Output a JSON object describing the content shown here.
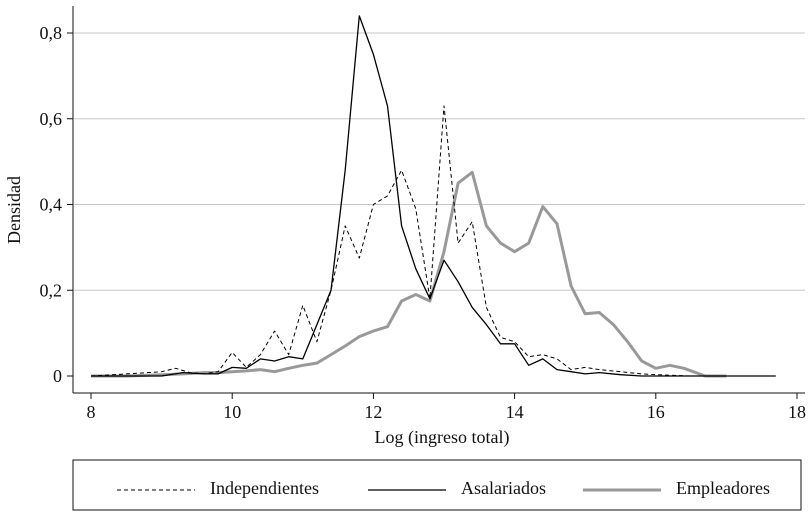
{
  "chart_data": {
    "type": "line",
    "title": "",
    "xlabel": "Log (ingreso total)",
    "ylabel": "Densidad",
    "xlim": [
      8,
      18
    ],
    "ylim": [
      0,
      0.85
    ],
    "x_ticks": [
      8,
      10,
      12,
      14,
      16,
      18
    ],
    "x_tick_labels": [
      "8",
      "10",
      "12",
      "14",
      "16",
      "18"
    ],
    "y_ticks": [
      0,
      0.2,
      0.4,
      0.6,
      0.8
    ],
    "y_tick_labels": [
      "0",
      "0,2",
      "0,4",
      "0,6",
      "0,8"
    ],
    "grid": "horizontal",
    "legend_position": "bottom",
    "series": [
      {
        "name": "Independientes",
        "color": "#000000",
        "style": "dashed",
        "x": [
          8.0,
          8.5,
          8.8,
          9.0,
          9.2,
          9.4,
          9.6,
          9.8,
          10.0,
          10.2,
          10.4,
          10.6,
          10.8,
          11.0,
          11.2,
          11.4,
          11.6,
          11.8,
          12.0,
          12.2,
          12.4,
          12.6,
          12.8,
          13.0,
          13.2,
          13.4,
          13.6,
          13.8,
          14.0,
          14.2,
          14.4,
          14.6,
          14.8,
          15.0,
          15.2,
          15.5,
          15.8,
          16.0,
          16.5,
          17.0
        ],
        "y": [
          0.0,
          0.005,
          0.008,
          0.01,
          0.018,
          0.008,
          0.005,
          0.01,
          0.055,
          0.02,
          0.05,
          0.105,
          0.05,
          0.165,
          0.08,
          0.2,
          0.35,
          0.275,
          0.4,
          0.42,
          0.48,
          0.39,
          0.18,
          0.63,
          0.31,
          0.36,
          0.16,
          0.09,
          0.08,
          0.045,
          0.05,
          0.04,
          0.015,
          0.02,
          0.015,
          0.01,
          0.005,
          0.003,
          0.0,
          0.0
        ]
      },
      {
        "name": "Asalariados",
        "color": "#000000",
        "style": "solid",
        "x": [
          8.0,
          8.5,
          9.0,
          9.3,
          9.6,
          9.8,
          10.0,
          10.2,
          10.4,
          10.6,
          10.8,
          11.0,
          11.2,
          11.4,
          11.6,
          11.8,
          12.0,
          12.2,
          12.4,
          12.6,
          12.8,
          13.0,
          13.2,
          13.4,
          13.6,
          13.8,
          14.0,
          14.2,
          14.4,
          14.6,
          14.8,
          15.0,
          15.2,
          15.5,
          15.8,
          16.0,
          16.5,
          17.0,
          17.7
        ],
        "y": [
          0.0,
          0.0,
          0.0,
          0.008,
          0.005,
          0.005,
          0.02,
          0.018,
          0.04,
          0.035,
          0.045,
          0.04,
          0.12,
          0.2,
          0.48,
          0.84,
          0.75,
          0.63,
          0.35,
          0.25,
          0.18,
          0.27,
          0.22,
          0.16,
          0.12,
          0.075,
          0.075,
          0.025,
          0.04,
          0.015,
          0.01,
          0.005,
          0.008,
          0.003,
          0.0,
          0.0,
          0.0,
          0.0,
          0.0
        ]
      },
      {
        "name": "Empleadores",
        "color": "#999999",
        "style": "solid",
        "x": [
          8.0,
          8.5,
          9.0,
          9.3,
          9.6,
          9.8,
          10.0,
          10.2,
          10.4,
          10.6,
          10.8,
          11.0,
          11.2,
          11.4,
          11.6,
          11.8,
          12.0,
          12.2,
          12.4,
          12.6,
          12.8,
          13.0,
          13.2,
          13.4,
          13.6,
          13.8,
          14.0,
          14.2,
          14.4,
          14.6,
          14.8,
          15.0,
          15.2,
          15.4,
          15.6,
          15.8,
          16.0,
          16.2,
          16.4,
          16.7,
          17.0
        ],
        "y": [
          0.0,
          0.0,
          0.003,
          0.005,
          0.008,
          0.008,
          0.01,
          0.012,
          0.015,
          0.01,
          0.018,
          0.025,
          0.03,
          0.05,
          0.07,
          0.092,
          0.105,
          0.115,
          0.175,
          0.19,
          0.175,
          0.29,
          0.45,
          0.475,
          0.35,
          0.31,
          0.29,
          0.31,
          0.395,
          0.355,
          0.21,
          0.145,
          0.148,
          0.12,
          0.08,
          0.035,
          0.018,
          0.025,
          0.018,
          0.0,
          0.0
        ]
      }
    ]
  }
}
